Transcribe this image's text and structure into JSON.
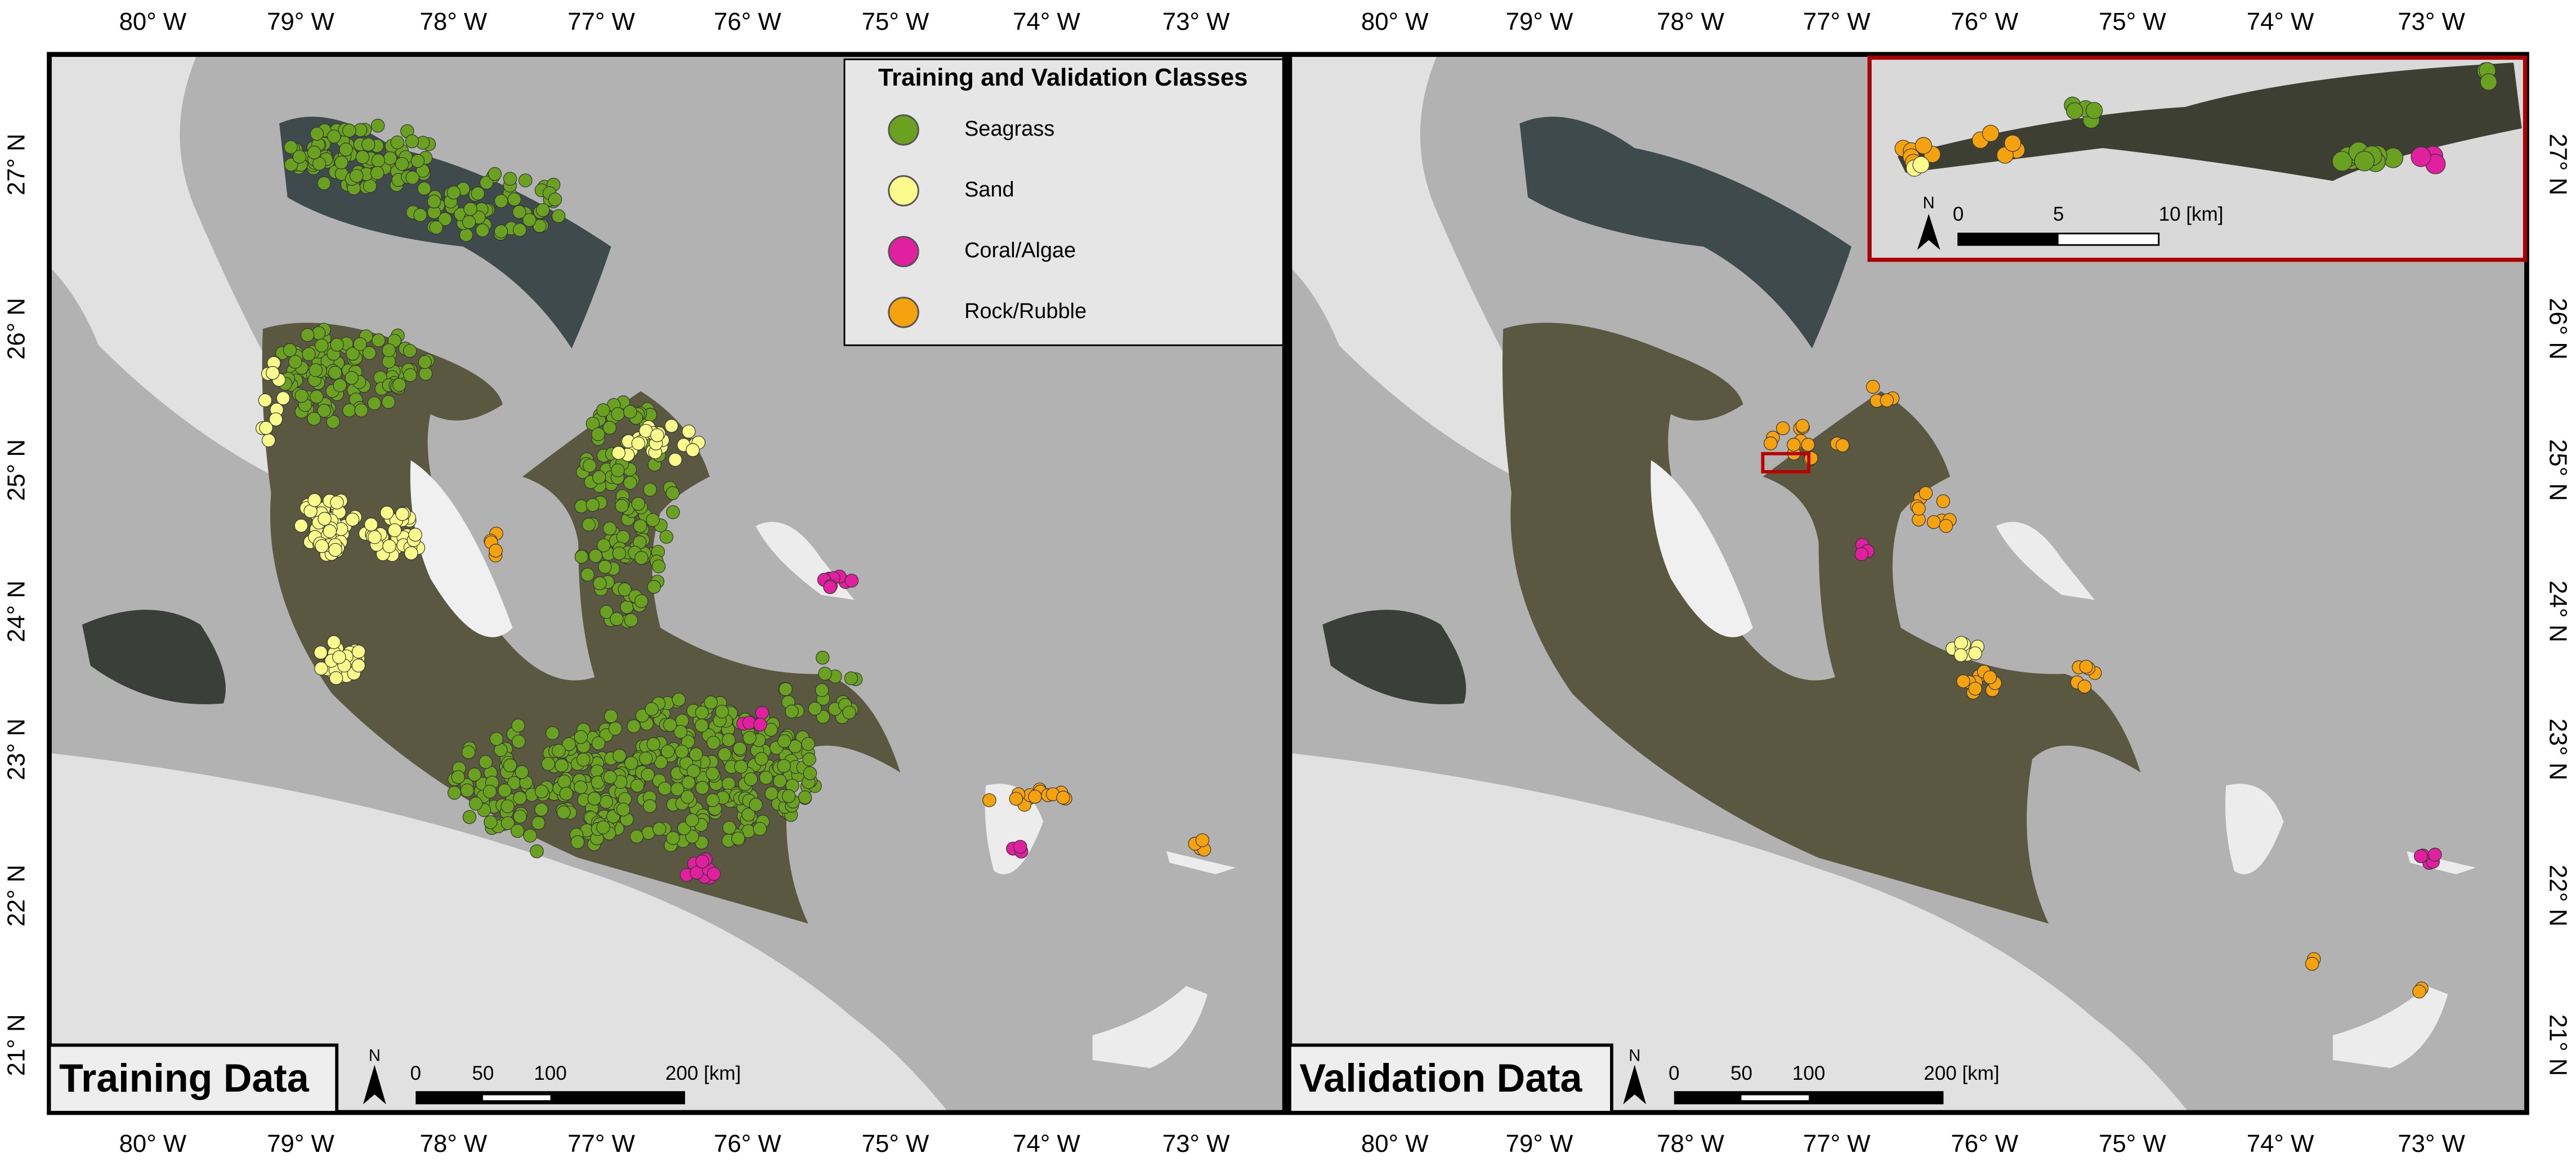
{
  "panels": [
    {
      "title": "Training Data",
      "scale_labels": [
        "0",
        "50",
        "100",
        "200 [km]"
      ]
    },
    {
      "title": "Validation Data",
      "scale_labels": [
        "0",
        "50",
        "100",
        "200 [km]"
      ]
    }
  ],
  "longitude_labels": [
    "80° W",
    "79° W",
    "78° W",
    "77° W",
    "76° W",
    "75° W",
    "74° W",
    "73° W"
  ],
  "latitude_labels": [
    "27° N",
    "26° N",
    "25° N",
    "24° N",
    "23° N",
    "22° N",
    "21° N"
  ],
  "legend": {
    "title": "Training and Validation Classes",
    "items": [
      {
        "label": "Seagrass",
        "color": "#6aa121"
      },
      {
        "label": "Sand",
        "color": "#fbfb8c"
      },
      {
        "label": "Coral/Algae",
        "color": "#e0209e"
      },
      {
        "label": "Rock/Rubble",
        "color": "#f5a20f"
      }
    ]
  },
  "inset": {
    "scale_labels": [
      "0",
      "5",
      "10 [km]"
    ]
  },
  "north_label": "N"
}
